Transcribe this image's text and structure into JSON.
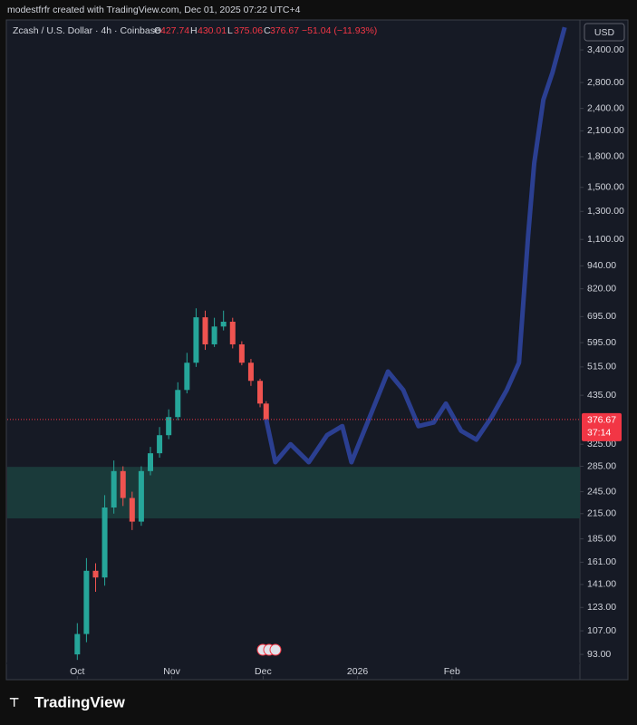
{
  "header": "modestfrfr created with TradingView.com, Dec 01, 2025 07:22 UTC+4",
  "symbol": "Zcash / U.S. Dollar · 4h · Coinbase",
  "ohlc": {
    "o_label": "O",
    "open": 427.74,
    "h_label": "H",
    "high": 430.01,
    "l_label": "L",
    "low": 375.06,
    "c_label": "C",
    "close": 376.67,
    "change": "−51.04 (−11.93%)"
  },
  "currency": "USD",
  "countdown": "37:14",
  "logo": "TradingView",
  "chart_data": {
    "type": "candlestick",
    "log_scale": true,
    "up_color": "#26a69a",
    "down_color": "#ef5350",
    "x": [
      0,
      3,
      6,
      9,
      12,
      15,
      18,
      21,
      24,
      27,
      30,
      33,
      36,
      39,
      42,
      45,
      48,
      51,
      54,
      57,
      60,
      62
    ],
    "open": [
      93,
      105,
      153,
      147,
      223,
      277,
      236,
      205,
      277,
      308,
      343,
      382,
      449,
      528,
      692,
      589,
      655,
      674,
      589,
      528,
      474,
      414
    ],
    "high": [
      112,
      165,
      160,
      240,
      295,
      285,
      245,
      285,
      320,
      360,
      400,
      470,
      560,
      730,
      720,
      690,
      720,
      690,
      600,
      540,
      480,
      420
    ],
    "low": [
      90,
      100,
      135,
      140,
      215,
      225,
      195,
      200,
      270,
      300,
      335,
      375,
      440,
      515,
      570,
      580,
      640,
      575,
      520,
      460,
      405,
      360
    ],
    "close": [
      105,
      153,
      147,
      223,
      277,
      236,
      205,
      277,
      308,
      343,
      382,
      449,
      528,
      692,
      589,
      655,
      674,
      589,
      528,
      474,
      414,
      377
    ],
    "projection": {
      "color": "#2b3f91",
      "x": [
        62,
        65,
        70,
        76,
        82,
        87,
        90,
        96,
        102,
        107,
        112,
        117,
        121,
        126,
        131,
        136,
        141,
        145,
        148,
        150,
        153,
        156,
        160
      ],
      "values": [
        377,
        292,
        325,
        292,
        343,
        362,
        292,
        382,
        501,
        449,
        362,
        370,
        414,
        352,
        334,
        382,
        449,
        528,
        1125,
        1733,
        2527,
        2972,
        3890
      ]
    },
    "zone": {
      "color": "#1a3a3a",
      "range": [
        209,
        284
      ]
    },
    "last_price": 376.67,
    "last_color": "#f23645",
    "xlim": [
      -23,
      165
    ],
    "xticks": [
      {
        "value": 0,
        "label": "Oct"
      },
      {
        "value": 31,
        "label": "Nov"
      },
      {
        "value": 61,
        "label": "Dec"
      },
      {
        "value": 92,
        "label": "2026"
      },
      {
        "value": 123,
        "label": "Feb"
      }
    ],
    "ylim": [
      80,
      4064
    ],
    "yticks": [
      {
        "value": 3400,
        "label": "3,400.00"
      },
      {
        "value": 2800,
        "label": "2,800.00"
      },
      {
        "value": 2400,
        "label": "2,400.00"
      },
      {
        "value": 2100,
        "label": "2,100.00"
      },
      {
        "value": 1800,
        "label": "1,800.00"
      },
      {
        "value": 1500,
        "label": "1,500.00"
      },
      {
        "value": 1300,
        "label": "1,300.00"
      },
      {
        "value": 1100,
        "label": "1,100.00"
      },
      {
        "value": 940,
        "label": "940.00"
      },
      {
        "value": 820,
        "label": "820.00"
      },
      {
        "value": 695,
        "label": "695.00"
      },
      {
        "value": 595,
        "label": "595.00"
      },
      {
        "value": 515,
        "label": "515.00"
      },
      {
        "value": 435,
        "label": "435.00"
      },
      {
        "value": 325,
        "label": "325.00"
      },
      {
        "value": 285,
        "label": "285.00"
      },
      {
        "value": 245,
        "label": "245.00"
      },
      {
        "value": 215,
        "label": "215.00"
      },
      {
        "value": 185,
        "label": "185.00"
      },
      {
        "value": 161,
        "label": "161.00"
      },
      {
        "value": 141,
        "label": "141.00"
      },
      {
        "value": 123,
        "label": "123.00"
      },
      {
        "value": 107,
        "label": "107.00"
      },
      {
        "value": 93,
        "label": "93.00"
      }
    ]
  }
}
